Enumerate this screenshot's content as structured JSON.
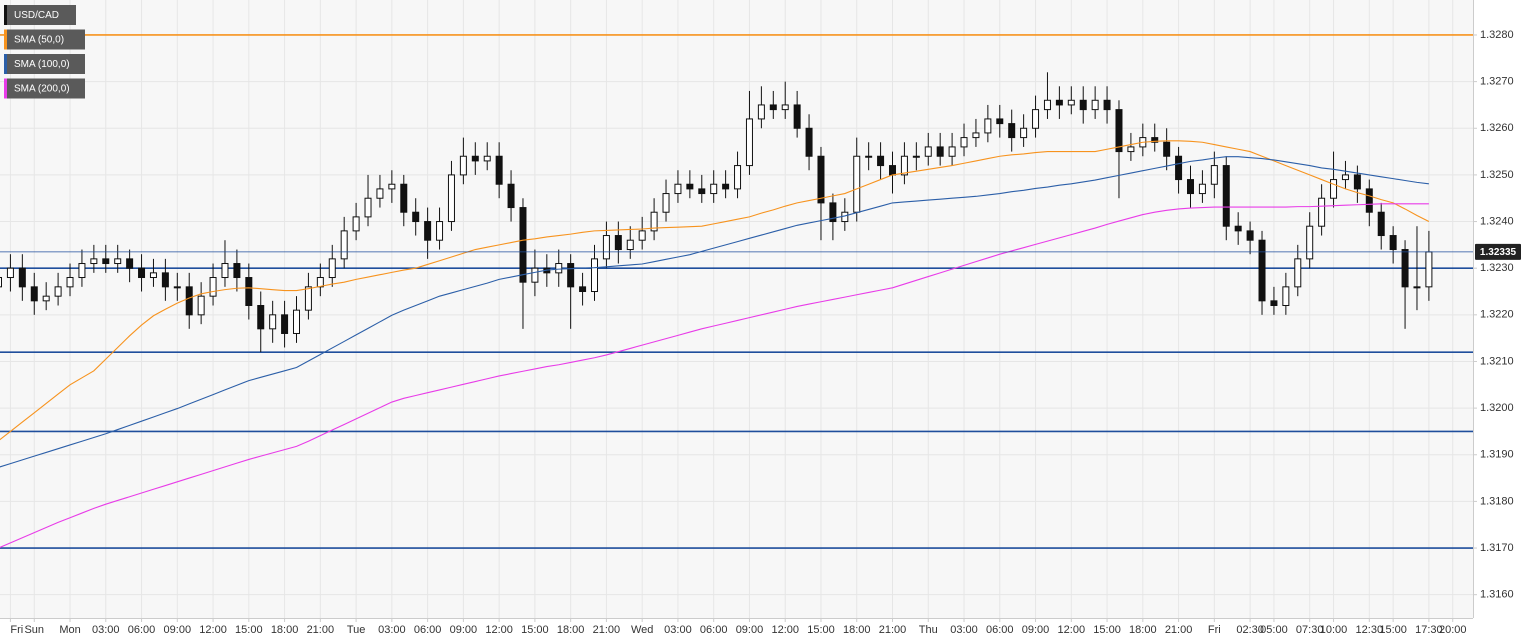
{
  "chart_data": {
    "type": "candlestick",
    "symbol": "USD/CAD",
    "categories": [
      null,
      "Fri",
      null,
      "Sun",
      null,
      null,
      "Mon",
      null,
      null,
      "03:00",
      null,
      null,
      "06:00",
      null,
      null,
      "09:00",
      null,
      null,
      "12:00",
      null,
      null,
      "15:00",
      null,
      null,
      "18:00",
      null,
      null,
      "21:00",
      null,
      null,
      "Tue",
      null,
      null,
      "03:00",
      null,
      null,
      "06:00",
      null,
      null,
      "09:00",
      null,
      null,
      "12:00",
      null,
      null,
      "15:00",
      null,
      null,
      "18:00",
      null,
      null,
      "21:00",
      null,
      null,
      "Wed",
      null,
      null,
      "03:00",
      null,
      null,
      "06:00",
      null,
      null,
      "09:00",
      null,
      null,
      "12:00",
      null,
      null,
      "15:00",
      null,
      null,
      "18:00",
      null,
      null,
      "21:00",
      null,
      null,
      "Thu",
      null,
      null,
      "03:00",
      null,
      null,
      "06:00",
      null,
      null,
      "09:00",
      null,
      null,
      "12:00",
      null,
      null,
      "15:00",
      null,
      null,
      "18:00",
      null,
      null,
      "21:00",
      null,
      null,
      "Fri",
      null,
      null,
      "02:30",
      null,
      "05:00",
      null,
      null,
      "07:30",
      null,
      "10:00",
      null,
      null,
      "12:30",
      null,
      "15:00",
      null,
      null,
      "17:30",
      null,
      "20:00"
    ],
    "open": [
      1.3226,
      1.3228,
      1.323,
      1.3226,
      1.3223,
      1.3224,
      1.3226,
      1.3228,
      1.3231,
      1.3232,
      1.3231,
      1.3232,
      1.323,
      1.3228,
      1.3229,
      1.3226,
      1.3226,
      1.322,
      1.3224,
      1.3228,
      1.3231,
      1.3228,
      1.3222,
      1.3217,
      1.322,
      1.3216,
      1.3221,
      1.3226,
      1.3228,
      1.3232,
      1.3238,
      1.3241,
      1.3245,
      1.3247,
      1.3248,
      1.3242,
      1.324,
      1.3236,
      1.324,
      1.325,
      1.3254,
      1.3253,
      1.3254,
      1.3248,
      1.3243,
      1.3227,
      1.323,
      1.3229,
      1.3231,
      1.3226,
      1.3225,
      1.3232,
      1.3237,
      1.3234,
      1.3236,
      1.3238,
      1.3242,
      1.3246,
      1.3248,
      1.3247,
      1.3246,
      1.3248,
      1.3247,
      1.3252,
      1.3262,
      1.3265,
      1.3264,
      1.3265,
      1.326,
      1.3254,
      1.3244,
      1.324,
      1.3242,
      1.3254,
      1.3254,
      1.3252,
      1.325,
      1.3254,
      1.3254,
      1.3256,
      1.3254,
      1.3256,
      1.3258,
      1.3259,
      1.3262,
      1.3261,
      1.3258,
      1.326,
      1.3264,
      1.3266,
      1.3265,
      1.3266,
      1.3264,
      1.3266,
      1.3264,
      1.3255,
      1.3256,
      1.3258,
      1.3257,
      1.3254,
      1.3249,
      1.3246,
      1.3248,
      1.3252,
      1.3239,
      1.3238,
      1.3236,
      1.3223,
      1.3222,
      1.3226,
      1.3232,
      1.3239,
      1.3245,
      1.3249,
      1.325,
      1.3247,
      1.3242,
      1.3237,
      1.3234,
      1.3226,
      1.3226,
      null,
      null
    ],
    "high": [
      1.3231,
      1.3233,
      1.3233,
      1.3229,
      1.3227,
      1.3229,
      1.3231,
      1.3234,
      1.3235,
      1.3235,
      1.3235,
      1.3234,
      1.3233,
      1.3232,
      1.3232,
      1.3229,
      1.3229,
      1.3227,
      1.3231,
      1.3236,
      1.3234,
      1.3231,
      1.3225,
      1.3223,
      1.3223,
      1.3224,
      1.3229,
      1.3231,
      1.3235,
      1.3241,
      1.3244,
      1.325,
      1.325,
      1.3251,
      1.325,
      1.3245,
      1.3243,
      1.3243,
      1.3253,
      1.3258,
      1.3257,
      1.3257,
      1.3257,
      1.3251,
      1.3245,
      1.3234,
      1.3233,
      1.3234,
      1.3233,
      1.3229,
      1.3235,
      1.324,
      1.324,
      1.3239,
      1.3241,
      1.3245,
      1.3249,
      1.3251,
      1.3251,
      1.325,
      1.3251,
      1.3251,
      1.3255,
      1.3268,
      1.3269,
      1.3268,
      1.327,
      1.3268,
      1.3263,
      1.3256,
      1.3246,
      1.3245,
      1.3258,
      1.3257,
      1.3257,
      1.3255,
      1.3257,
      1.3257,
      1.3259,
      1.3259,
      1.3259,
      1.3261,
      1.3262,
      1.3265,
      1.3265,
      1.3264,
      1.3263,
      1.3267,
      1.3272,
      1.3269,
      1.3269,
      1.3269,
      1.3269,
      1.3269,
      1.3266,
      1.3259,
      1.3261,
      1.3261,
      1.326,
      1.3256,
      1.3252,
      1.3251,
      1.3255,
      1.3254,
      1.3242,
      1.324,
      1.3238,
      1.3226,
      1.3229,
      1.3235,
      1.3242,
      1.3248,
      1.3255,
      1.3253,
      1.3252,
      1.3249,
      1.3244,
      1.3239,
      1.3236,
      1.3239,
      1.3238,
      null,
      null
    ],
    "low": [
      1.3223,
      1.3225,
      1.3223,
      1.322,
      1.3221,
      1.3222,
      1.3224,
      1.3226,
      1.3229,
      1.3229,
      1.3229,
      1.3227,
      1.3225,
      1.3226,
      1.3223,
      1.3223,
      1.3217,
      1.3218,
      1.3222,
      1.3226,
      1.3225,
      1.3219,
      1.3212,
      1.3214,
      1.3213,
      1.3214,
      1.3219,
      1.3224,
      1.3226,
      1.323,
      1.3236,
      1.3239,
      1.3243,
      1.3244,
      1.3239,
      1.3237,
      1.3232,
      1.3234,
      1.3238,
      1.3248,
      1.325,
      1.3251,
      1.3245,
      1.324,
      1.3217,
      1.3224,
      1.3226,
      1.3226,
      1.3217,
      1.3222,
      1.3223,
      1.323,
      1.3231,
      1.3232,
      1.3234,
      1.3236,
      1.324,
      1.3244,
      1.3245,
      1.3244,
      1.3244,
      1.3245,
      1.3245,
      1.325,
      1.326,
      1.3262,
      1.3262,
      1.3258,
      1.3251,
      1.3236,
      1.3236,
      1.3238,
      1.324,
      1.3251,
      1.3249,
      1.3246,
      1.3248,
      1.3251,
      1.3252,
      1.3252,
      1.3252,
      1.3254,
      1.3256,
      1.3257,
      1.3258,
      1.3255,
      1.3256,
      1.3258,
      1.3262,
      1.3262,
      1.3263,
      1.3261,
      1.3262,
      1.3261,
      1.3245,
      1.3253,
      1.3254,
      1.3255,
      1.3251,
      1.3246,
      1.3243,
      1.3244,
      1.3245,
      1.3236,
      1.3235,
      1.3233,
      1.322,
      1.322,
      1.322,
      1.3224,
      1.323,
      1.3237,
      1.3243,
      1.3247,
      1.3244,
      1.3239,
      1.3234,
      1.3231,
      1.3217,
      1.3221,
      1.3223,
      null,
      null
    ],
    "close": [
      1.3228,
      1.323,
      1.3226,
      1.3223,
      1.3224,
      1.3226,
      1.3228,
      1.3231,
      1.3232,
      1.3231,
      1.3232,
      1.323,
      1.3228,
      1.3229,
      1.3226,
      1.3226,
      1.322,
      1.3224,
      1.3228,
      1.3231,
      1.3228,
      1.3222,
      1.3217,
      1.322,
      1.3216,
      1.3221,
      1.3226,
      1.3228,
      1.3232,
      1.3238,
      1.3241,
      1.3245,
      1.3247,
      1.3248,
      1.3242,
      1.324,
      1.3236,
      1.324,
      1.325,
      1.3254,
      1.3253,
      1.3254,
      1.3248,
      1.3243,
      1.3227,
      1.323,
      1.3229,
      1.3231,
      1.3226,
      1.3225,
      1.3232,
      1.3237,
      1.3234,
      1.3236,
      1.3238,
      1.3242,
      1.3246,
      1.3248,
      1.3247,
      1.3246,
      1.3248,
      1.3247,
      1.3252,
      1.3262,
      1.3265,
      1.3264,
      1.3265,
      1.326,
      1.3254,
      1.3244,
      1.324,
      1.3242,
      1.3254,
      1.3254,
      1.3252,
      1.325,
      1.3254,
      1.3254,
      1.3256,
      1.3254,
      1.3256,
      1.3258,
      1.3259,
      1.3262,
      1.3261,
      1.3258,
      1.326,
      1.3264,
      1.3266,
      1.3265,
      1.3266,
      1.3264,
      1.3266,
      1.3264,
      1.3255,
      1.3256,
      1.3258,
      1.3257,
      1.3254,
      1.3249,
      1.3246,
      1.3248,
      1.3252,
      1.3239,
      1.3238,
      1.3236,
      1.3223,
      1.3222,
      1.3226,
      1.3232,
      1.3239,
      1.3245,
      1.3249,
      1.325,
      1.3247,
      1.3242,
      1.3237,
      1.3234,
      1.3226,
      1.3226,
      1.32335,
      null,
      null
    ],
    "series": [
      {
        "name": "SMA (50,0)",
        "color": "#f7931e",
        "values": [
          1.3193,
          1.3195,
          1.3197,
          1.3199,
          1.3201,
          1.3203,
          1.3205,
          1.32065,
          1.3208,
          1.32105,
          1.3213,
          1.32155,
          1.32178,
          1.32198,
          1.32212,
          1.32225,
          1.32236,
          1.32245,
          1.3225,
          1.32254,
          1.32257,
          1.32258,
          1.32256,
          1.32254,
          1.32252,
          1.32252,
          1.32256,
          1.32261,
          1.32266,
          1.3227,
          1.32276,
          1.32281,
          1.32286,
          1.32291,
          1.32296,
          1.323,
          1.32308,
          1.32316,
          1.32324,
          1.32332,
          1.3234,
          1.32345,
          1.3235,
          1.32355,
          1.3236,
          1.32363,
          1.32367,
          1.3237,
          1.32373,
          1.32377,
          1.3238,
          1.32381,
          1.32382,
          1.32383,
          1.32384,
          1.32386,
          1.32387,
          1.32388,
          1.32389,
          1.3239,
          1.32395,
          1.324,
          1.32405,
          1.3241,
          1.32418,
          1.32425,
          1.32433,
          1.3244,
          1.32445,
          1.3245,
          1.32455,
          1.3246,
          1.3247,
          1.3248,
          1.3249,
          1.325,
          1.32504,
          1.32508,
          1.32512,
          1.32516,
          1.3252,
          1.32525,
          1.3253,
          1.32535,
          1.3254,
          1.32543,
          1.32545,
          1.32548,
          1.3255,
          1.3255,
          1.3255,
          1.3255,
          1.3255,
          1.32555,
          1.3256,
          1.32565,
          1.3257,
          1.32572,
          1.32573,
          1.32573,
          1.32572,
          1.3257,
          1.32565,
          1.3256,
          1.32555,
          1.3255,
          1.3254,
          1.3253,
          1.3252,
          1.3251,
          1.325,
          1.3249,
          1.3248,
          1.3247,
          1.32462,
          1.32455,
          1.32447,
          1.3244,
          1.32427,
          1.32413,
          1.324,
          null,
          null
        ]
      },
      {
        "name": "SMA (100,0)",
        "color": "#2c5fa8",
        "values": [
          1.31873,
          1.31881,
          1.31889,
          1.31897,
          1.31905,
          1.31913,
          1.31921,
          1.31929,
          1.31937,
          1.31945,
          1.31954,
          1.31963,
          1.31972,
          1.31981,
          1.3199,
          1.31999,
          1.32009,
          1.32019,
          1.32029,
          1.32039,
          1.32049,
          1.32059,
          1.32066,
          1.32073,
          1.3208,
          1.32087,
          1.32101,
          1.32115,
          1.32129,
          1.32143,
          1.32157,
          1.32171,
          1.32185,
          1.32199,
          1.3221,
          1.3222,
          1.3223,
          1.3224,
          1.32247,
          1.32254,
          1.32261,
          1.32268,
          1.32276,
          1.32281,
          1.32286,
          1.32291,
          1.32296,
          1.32298,
          1.32299,
          1.323,
          1.32301,
          1.32303,
          1.32305,
          1.32307,
          1.32309,
          1.32314,
          1.32319,
          1.32324,
          1.32329,
          1.32336,
          1.32343,
          1.3235,
          1.32357,
          1.32364,
          1.32371,
          1.32378,
          1.32385,
          1.32392,
          1.32397,
          1.32402,
          1.32407,
          1.32412,
          1.32419,
          1.32426,
          1.32433,
          1.3244,
          1.32442,
          1.32444,
          1.32446,
          1.32448,
          1.3245,
          1.32452,
          1.32454,
          1.32457,
          1.3246,
          1.32464,
          1.32467,
          1.32471,
          1.32474,
          1.32478,
          1.32481,
          1.32485,
          1.32489,
          1.32494,
          1.32499,
          1.32504,
          1.32509,
          1.32514,
          1.32519,
          1.32524,
          1.32529,
          1.32532,
          1.32536,
          1.32539,
          1.32539,
          1.32537,
          1.32535,
          1.32532,
          1.32528,
          1.32524,
          1.3252,
          1.32515,
          1.32512,
          1.32508,
          1.32504,
          1.325,
          1.32496,
          1.32492,
          1.32488,
          1.32484,
          1.32481,
          null,
          null
        ]
      },
      {
        "name": "SMA (200,0)",
        "color": "#e83ce8",
        "values": [
          1.317,
          1.31711,
          1.31722,
          1.31733,
          1.31744,
          1.31755,
          1.31765,
          1.31775,
          1.31785,
          1.31794,
          1.31802,
          1.3181,
          1.31818,
          1.31826,
          1.31834,
          1.31842,
          1.3185,
          1.31858,
          1.31866,
          1.31874,
          1.31882,
          1.3189,
          1.31897,
          1.31904,
          1.31911,
          1.31918,
          1.31929,
          1.31941,
          1.31953,
          1.31965,
          1.31977,
          1.31989,
          1.32001,
          1.32013,
          1.32021,
          1.32027,
          1.32033,
          1.32039,
          1.32045,
          1.32051,
          1.32057,
          1.32063,
          1.32069,
          1.32074,
          1.32079,
          1.32084,
          1.32089,
          1.32093,
          1.32098,
          1.32103,
          1.32108,
          1.32114,
          1.32121,
          1.32128,
          1.32135,
          1.32142,
          1.32149,
          1.32156,
          1.32163,
          1.3217,
          1.32176,
          1.32182,
          1.32188,
          1.32194,
          1.322,
          1.32206,
          1.32212,
          1.32218,
          1.32223,
          1.32228,
          1.32233,
          1.32238,
          1.32243,
          1.32248,
          1.32253,
          1.32258,
          1.32266,
          1.32274,
          1.32282,
          1.3229,
          1.32298,
          1.32306,
          1.32314,
          1.32322,
          1.3233,
          1.32337,
          1.32344,
          1.32351,
          1.32358,
          1.32365,
          1.32372,
          1.32379,
          1.32386,
          1.32394,
          1.32401,
          1.32408,
          1.32415,
          1.3242,
          1.32424,
          1.32427,
          1.32429,
          1.3243,
          1.32431,
          1.32431,
          1.32431,
          1.32431,
          1.32431,
          1.32431,
          1.32431,
          1.32432,
          1.32432,
          1.32433,
          1.32434,
          1.32435,
          1.32436,
          1.32437,
          1.32438,
          1.32438,
          1.32438,
          1.32438,
          1.32438,
          null,
          null
        ]
      }
    ],
    "hlines": [
      {
        "value": 1.328,
        "color": "#f7931e"
      },
      {
        "value": 1.323,
        "color": "#1f4e9c"
      },
      {
        "value": 1.3212,
        "color": "#1f4e9c"
      },
      {
        "value": 1.3195,
        "color": "#1f4e9c"
      },
      {
        "value": 1.317,
        "color": "#1f4e9c"
      }
    ],
    "ylim": [
      1.3155,
      1.32875
    ],
    "yticks": [
      {
        "value": 1.316,
        "label": "1.3160"
      },
      {
        "value": 1.317,
        "label": "1.3170"
      },
      {
        "value": 1.318,
        "label": "1.3180"
      },
      {
        "value": 1.319,
        "label": "1.3190"
      },
      {
        "value": 1.32,
        "label": "1.3200"
      },
      {
        "value": 1.321,
        "label": "1.3210"
      },
      {
        "value": 1.322,
        "label": "1.3220"
      },
      {
        "value": 1.323,
        "label": "1.3230"
      },
      {
        "value": 1.324,
        "label": "1.3240"
      },
      {
        "value": 1.325,
        "label": "1.3250"
      },
      {
        "value": 1.326,
        "label": "1.3260"
      },
      {
        "value": 1.327,
        "label": "1.3270"
      },
      {
        "value": 1.328,
        "label": "1.3280"
      }
    ],
    "grid": true
  }
}
